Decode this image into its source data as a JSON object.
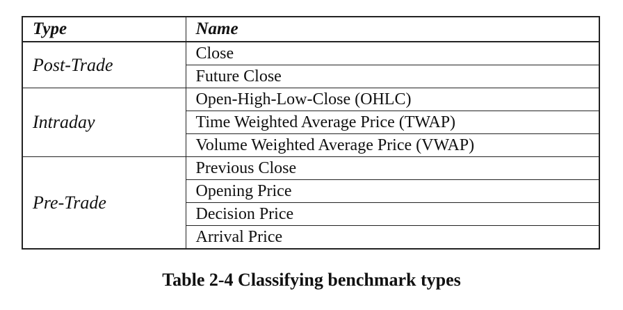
{
  "table": {
    "headers": {
      "type": "Type",
      "name": "Name"
    },
    "groups": [
      {
        "type": "Post-Trade",
        "names": [
          "Close",
          "Future Close"
        ]
      },
      {
        "type": "Intraday",
        "names": [
          "Open-High-Low-Close (OHLC)",
          "Time Weighted Average Price (TWAP)",
          "Volume Weighted Average Price (VWAP)"
        ]
      },
      {
        "type": "Pre-Trade",
        "names": [
          "Previous Close",
          "Opening Price",
          "Decision Price",
          "Arrival Price"
        ]
      }
    ]
  },
  "caption": "Table 2-4 Classifying benchmark types"
}
